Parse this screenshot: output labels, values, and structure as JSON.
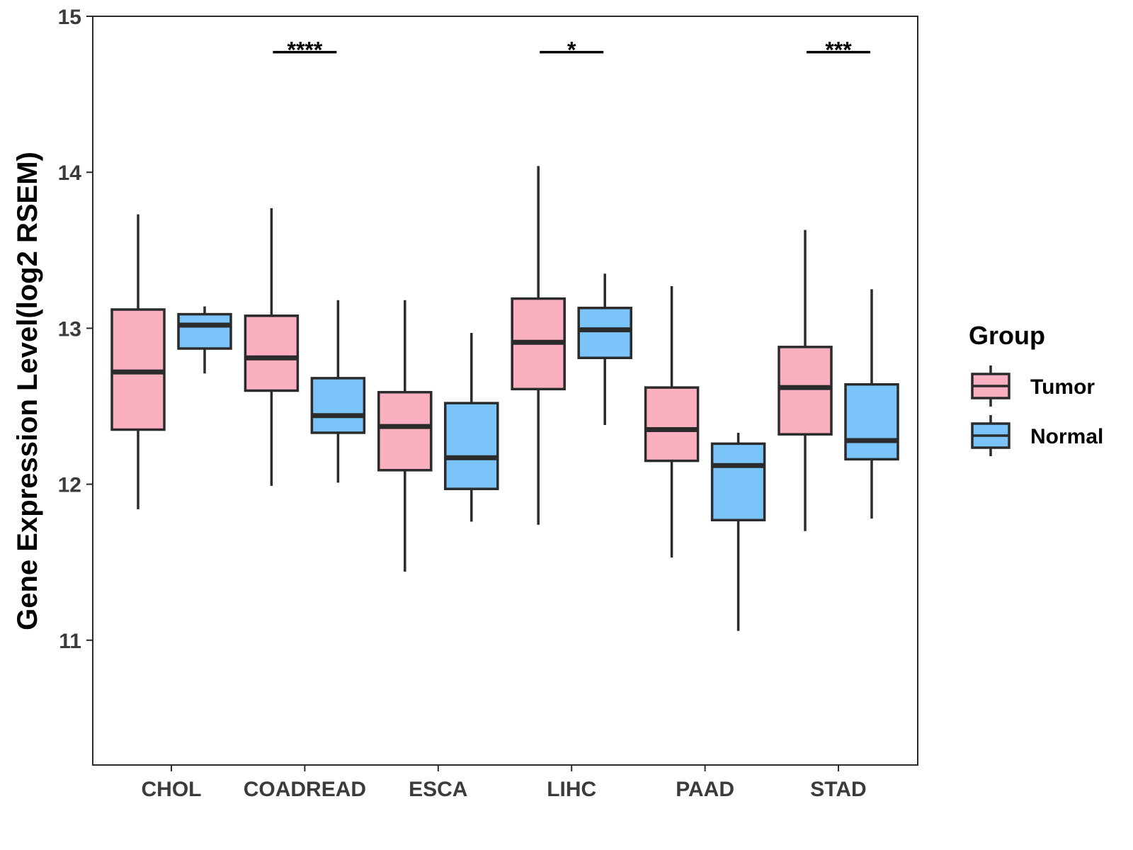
{
  "chart_data": {
    "type": "boxplot",
    "title": "",
    "xlabel": "",
    "ylabel": "Gene Expression Level(log2 RSEM)",
    "ylim": [
      10.2,
      15
    ],
    "yticks": [
      11,
      12,
      13,
      14,
      15
    ],
    "grid": false,
    "legend_position": "right",
    "categories": [
      "CHOL",
      "COADREAD",
      "ESCA",
      "LIHC",
      "PAAD",
      "STAD"
    ],
    "legend": {
      "title": "Group"
    },
    "series": [
      {
        "name": "Tumor",
        "color": "#FBB0C1",
        "boxes": [
          {
            "category": "CHOL",
            "min": 11.84,
            "q1": 12.35,
            "median": 12.72,
            "q3": 13.12,
            "max": 13.73
          },
          {
            "category": "COADREAD",
            "min": 11.99,
            "q1": 12.6,
            "median": 12.81,
            "q3": 13.08,
            "max": 13.77
          },
          {
            "category": "ESCA",
            "min": 11.44,
            "q1": 12.09,
            "median": 12.37,
            "q3": 12.59,
            "max": 13.18
          },
          {
            "category": "LIHC",
            "min": 11.74,
            "q1": 12.61,
            "median": 12.91,
            "q3": 13.19,
            "max": 14.04
          },
          {
            "category": "PAAD",
            "min": 11.53,
            "q1": 12.15,
            "median": 12.35,
            "q3": 12.62,
            "max": 13.27
          },
          {
            "category": "STAD",
            "min": 11.7,
            "q1": 12.32,
            "median": 12.62,
            "q3": 12.88,
            "max": 13.63
          }
        ]
      },
      {
        "name": "Normal",
        "color": "#7BC4F9",
        "boxes": [
          {
            "category": "CHOL",
            "min": 12.71,
            "q1": 12.87,
            "median": 13.02,
            "q3": 13.09,
            "max": 13.14
          },
          {
            "category": "COADREAD",
            "min": 12.01,
            "q1": 12.33,
            "median": 12.44,
            "q3": 12.68,
            "max": 13.18
          },
          {
            "category": "ESCA",
            "min": 11.76,
            "q1": 11.97,
            "median": 12.17,
            "q3": 12.52,
            "max": 12.97
          },
          {
            "category": "LIHC",
            "min": 12.38,
            "q1": 12.81,
            "median": 12.99,
            "q3": 13.13,
            "max": 13.35
          },
          {
            "category": "PAAD",
            "min": 11.06,
            "q1": 11.77,
            "median": 12.12,
            "q3": 12.26,
            "max": 12.33
          },
          {
            "category": "STAD",
            "min": 11.78,
            "q1": 12.16,
            "median": 12.28,
            "q3": 12.64,
            "max": 13.25
          }
        ]
      }
    ],
    "significance": [
      {
        "category": "COADREAD",
        "label": "****",
        "y": 14.77
      },
      {
        "category": "LIHC",
        "label": "*",
        "y": 14.77
      },
      {
        "category": "STAD",
        "label": "***",
        "y": 14.77
      }
    ]
  }
}
